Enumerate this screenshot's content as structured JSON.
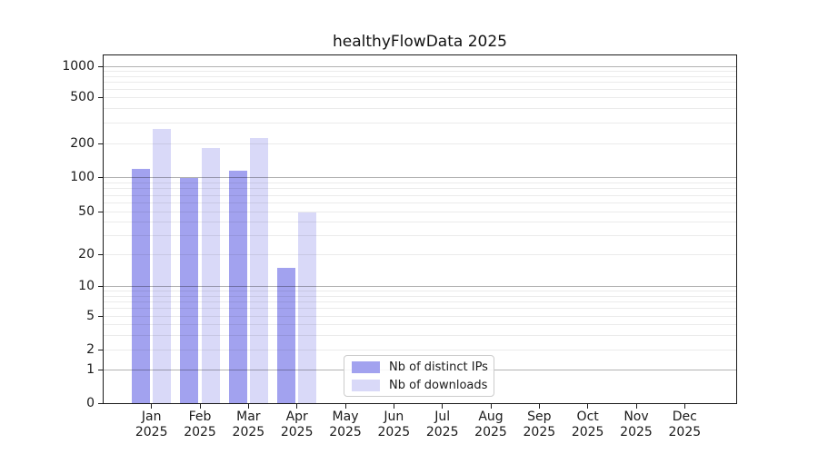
{
  "title": "healthyFlowData 2025",
  "chart_data": {
    "type": "bar",
    "title": "healthyFlowData 2025",
    "xlabel": "",
    "ylabel": "",
    "yscale": "symlog",
    "ylim": [
      0,
      1285
    ],
    "yticks": [
      0,
      1,
      2,
      5,
      10,
      20,
      50,
      100,
      200,
      500,
      1000
    ],
    "major_grid_values": [
      1,
      10,
      100,
      1000
    ],
    "grid": {
      "major": true,
      "minor": true,
      "orientation": "horizontal"
    },
    "categories": [
      "Jan",
      "Feb",
      "Mar",
      "Apr",
      "May",
      "Jun",
      "Jul",
      "Aug",
      "Sep",
      "Oct",
      "Nov",
      "Dec"
    ],
    "category_year": "2025",
    "series": [
      {
        "name": "Nb of distinct IPs",
        "color": "#a2a2ef",
        "values": [
          120,
          100,
          115,
          15,
          0,
          0,
          0,
          0,
          0,
          0,
          0,
          0
        ]
      },
      {
        "name": "Nb of downloads",
        "color": "#d9d9f8",
        "values": [
          270,
          185,
          225,
          50,
          0,
          0,
          0,
          0,
          0,
          0,
          0,
          0
        ]
      }
    ],
    "legend_position": "lower center-left inside plot"
  },
  "colors": {
    "background": "#ffffff",
    "axis": "#1a1a1a",
    "text": "#1a1a1a",
    "major_grid": "#b3b3b3",
    "minor_grid": "#ebebeb",
    "legend_border": "#cccccc"
  }
}
